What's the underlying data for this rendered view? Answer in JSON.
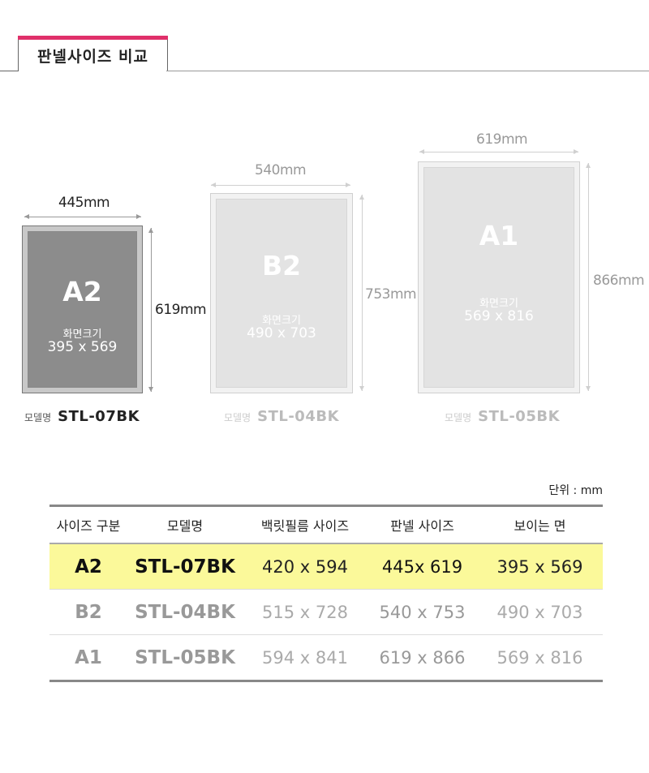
{
  "section": {
    "title": "판넬사이즈 비교"
  },
  "colors": {
    "accent": "#e0306a",
    "highlight_row": "#fbf99a"
  },
  "panels": [
    {
      "size": "A2",
      "width_label": "445mm",
      "height_label": "619mm",
      "screen_label": "화면크기",
      "screen_dims": "395 x 569",
      "model_label": "모델명",
      "model": "STL-07BK"
    },
    {
      "size": "B2",
      "width_label": "540mm",
      "height_label": "753mm",
      "screen_label": "화면크기",
      "screen_dims": "490 x 703",
      "model_label": "모델명",
      "model": "STL-04BK"
    },
    {
      "size": "A1",
      "width_label": "619mm",
      "height_label": "866mm",
      "screen_label": "화면크기",
      "screen_dims": "569 x 816",
      "model_label": "모델명",
      "model": "STL-05BK"
    }
  ],
  "table": {
    "unit": "단위 : mm",
    "headers": [
      "사이즈 구분",
      "모델명",
      "백릿필름 사이즈",
      "판넬 사이즈",
      "보이는 면"
    ],
    "rows": [
      [
        "A2",
        "STL-07BK",
        "420 x 594",
        "445x 619",
        "395 x 569"
      ],
      [
        "B2",
        "STL-04BK",
        "515 x 728",
        "540 x 753",
        "490 x 703"
      ],
      [
        "A1",
        "STL-05BK",
        "594 x 841",
        "619 x 866",
        "569 x 816"
      ]
    ]
  }
}
